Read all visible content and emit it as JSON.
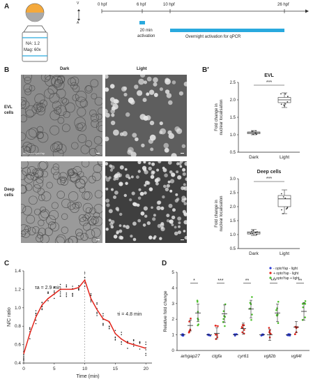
{
  "panels": {
    "A": "A",
    "B": "B",
    "Bp": "B′",
    "C": "C",
    "D": "D"
  },
  "panelA": {
    "na": "NA: 1.2",
    "mag": "Mag: 60x",
    "axis_v": "V",
    "axis_a": "A",
    "timeline": [
      "0 hpf",
      "6 hpf",
      "10 hpf",
      "26 hpf"
    ],
    "activation1": "20 min\nactivation",
    "activation2": "Overnight activation for qPCR",
    "activation_color": "#29a9de"
  },
  "panelB": {
    "col_dark": "Dark",
    "col_light": "Light",
    "row_evl": "EVL\ncells",
    "row_deep": "Deep\ncells",
    "image_label": "mCherry-optoYap"
  },
  "chart_data": [
    {
      "type": "box",
      "title": "EVL",
      "ylabel": "Fold change in\nnuclear localisation",
      "categories": [
        "Dark",
        "Light"
      ],
      "ylim": [
        0.5,
        2.5
      ],
      "yticks": [
        "0.5",
        "1.0",
        "1.5",
        "2.0",
        "2.5"
      ],
      "boxes": [
        {
          "category": "Dark",
          "min": 1.0,
          "q1": 1.03,
          "median": 1.06,
          "q3": 1.08,
          "max": 1.12
        },
        {
          "category": "Light",
          "min": 1.78,
          "q1": 1.92,
          "median": 2.0,
          "q3": 2.07,
          "max": 2.2
        }
      ],
      "significance": "***"
    },
    {
      "type": "box",
      "title": "Deep cells",
      "ylabel": "Fold change in\nnuclear localisation",
      "categories": [
        "Dark",
        "Light"
      ],
      "ylim": [
        0.5,
        3.0
      ],
      "yticks": [
        "0.5",
        "1.0",
        "1.5",
        "2.0",
        "2.5",
        "3.0"
      ],
      "boxes": [
        {
          "category": "Dark",
          "min": 0.97,
          "q1": 1.02,
          "median": 1.06,
          "q3": 1.1,
          "max": 1.18
        },
        {
          "category": "Light",
          "min": 1.75,
          "q1": 2.0,
          "median": 2.28,
          "q3": 2.4,
          "max": 2.6
        }
      ],
      "significance": "***"
    },
    {
      "type": "line",
      "ylabel": "N/C ratio",
      "xlabel": "Time (min)",
      "xlim": [
        0,
        21
      ],
      "ylim": [
        0.4,
        1.4
      ],
      "xticks": [
        "0",
        "5",
        "10",
        "15",
        "20"
      ],
      "yticks": [
        "0.4",
        "0.6",
        "0.8",
        "1.0",
        "1.2",
        "1.4"
      ],
      "annotations": [
        "τa = 2.9 min",
        "τi = 4.8 min"
      ],
      "vline_x": 10,
      "series": [
        {
          "x": [
            0,
            1,
            2,
            3,
            4,
            5,
            6,
            7,
            8,
            9,
            10,
            11,
            12,
            13,
            14,
            15,
            16,
            17,
            18,
            19,
            20
          ],
          "y": [
            0.5,
            0.72,
            0.9,
            1.03,
            1.1,
            1.15,
            1.2,
            1.2,
            1.2,
            1.22,
            1.3,
            1.1,
            0.98,
            0.88,
            0.85,
            0.72,
            0.66,
            0.62,
            0.6,
            0.58,
            0.56
          ],
          "color": "#e2231a"
        }
      ]
    },
    {
      "type": "scatter",
      "ylabel": "Relative fold change",
      "categories": [
        "arhgap27",
        "ctgfa",
        "cyr61",
        "vgll2b",
        "vgll4l"
      ],
      "ylim": [
        0,
        5
      ],
      "yticks": [
        "0",
        "1",
        "2",
        "3",
        "4",
        "5"
      ],
      "legend": [
        "- optoYap - light",
        "+ optoYap - light",
        "+ optoYap + light"
      ],
      "legend_position": "top-right",
      "series": [
        {
          "name": "- optoYap - light",
          "color": "#2b3bd6",
          "means": [
            1.0,
            1.0,
            1.0,
            1.0,
            1.0
          ]
        },
        {
          "name": "+ optoYap - light",
          "color": "#e2231a",
          "means": [
            1.6,
            1.1,
            1.4,
            1.0,
            1.5
          ]
        },
        {
          "name": "+ optoYap + light",
          "color": "#4fc12f",
          "means": [
            2.4,
            2.35,
            2.65,
            2.4,
            2.5
          ]
        }
      ],
      "significance": [
        "*",
        "***",
        "**",
        "***",
        "**"
      ]
    }
  ]
}
